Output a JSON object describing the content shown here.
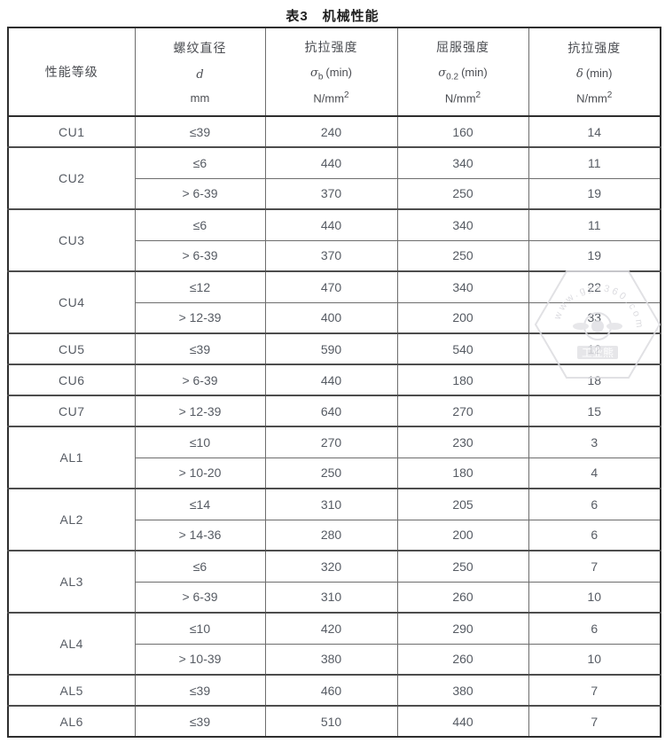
{
  "title": "表3　机械性能",
  "header": {
    "grade": "性能等级",
    "diameter": {
      "name": "螺纹直径",
      "symbol": "d",
      "unit": "mm"
    },
    "tensile": {
      "name": "抗拉强度",
      "symbol": "σ",
      "symbol_sub": "b",
      "min": "(min)",
      "unit": "N/mm",
      "unit_sup": "2"
    },
    "yield": {
      "name": "屈服强度",
      "symbol": "σ",
      "symbol_sub": "0.2",
      "min": "(min)",
      "unit": "N/mm",
      "unit_sup": "2"
    },
    "elong": {
      "name": "抗拉强度",
      "symbol": "δ",
      "min": "(min)",
      "unit": "N/mm",
      "unit_sup": "2"
    }
  },
  "groups": [
    {
      "grade": "CU1",
      "rows": [
        {
          "d": "≤39",
          "tensile": "240",
          "yield": "160",
          "elong": "14"
        }
      ]
    },
    {
      "grade": "CU2",
      "rows": [
        {
          "d": "≤6",
          "tensile": "440",
          "yield": "340",
          "elong": "11"
        },
        {
          "d": "> 6-39",
          "tensile": "370",
          "yield": "250",
          "elong": "19"
        }
      ]
    },
    {
      "grade": "CU3",
      "rows": [
        {
          "d": "≤6",
          "tensile": "440",
          "yield": "340",
          "elong": "11"
        },
        {
          "d": "> 6-39",
          "tensile": "370",
          "yield": "250",
          "elong": "19"
        }
      ]
    },
    {
      "grade": "CU4",
      "rows": [
        {
          "d": "≤12",
          "tensile": "470",
          "yield": "340",
          "elong": "22"
        },
        {
          "d": "> 12-39",
          "tensile": "400",
          "yield": "200",
          "elong": "33"
        }
      ]
    },
    {
      "grade": "CU5",
      "rows": [
        {
          "d": "≤39",
          "tensile": "590",
          "yield": "540",
          "elong": "12"
        }
      ]
    },
    {
      "grade": "CU6",
      "rows": [
        {
          "d": "> 6-39",
          "tensile": "440",
          "yield": "180",
          "elong": "18"
        }
      ]
    },
    {
      "grade": "CU7",
      "rows": [
        {
          "d": "> 12-39",
          "tensile": "640",
          "yield": "270",
          "elong": "15"
        }
      ]
    },
    {
      "grade": "AL1",
      "rows": [
        {
          "d": "≤10",
          "tensile": "270",
          "yield": "230",
          "elong": "3"
        },
        {
          "d": "> 10-20",
          "tensile": "250",
          "yield": "180",
          "elong": "4"
        }
      ]
    },
    {
      "grade": "AL2",
      "rows": [
        {
          "d": "≤14",
          "tensile": "310",
          "yield": "205",
          "elong": "6"
        },
        {
          "d": "> 14-36",
          "tensile": "280",
          "yield": "200",
          "elong": "6"
        }
      ]
    },
    {
      "grade": "AL3",
      "rows": [
        {
          "d": "≤6",
          "tensile": "320",
          "yield": "250",
          "elong": "7"
        },
        {
          "d": "> 6-39",
          "tensile": "310",
          "yield": "260",
          "elong": "10"
        }
      ]
    },
    {
      "grade": "AL4",
      "rows": [
        {
          "d": "≤10",
          "tensile": "420",
          "yield": "290",
          "elong": "6"
        },
        {
          "d": "> 10-39",
          "tensile": "380",
          "yield": "260",
          "elong": "10"
        }
      ]
    },
    {
      "grade": "AL5",
      "rows": [
        {
          "d": "≤39",
          "tensile": "460",
          "yield": "380",
          "elong": "7"
        }
      ]
    },
    {
      "grade": "AL6",
      "rows": [
        {
          "d": "≤39",
          "tensile": "510",
          "yield": "440",
          "elong": "7"
        }
      ]
    }
  ],
  "watermark": {
    "arc_text": "www.gyx360.com",
    "label": "工业熊"
  },
  "colors": {
    "outer_border": "#2e2e2e",
    "inner_border": "#6d6d6d",
    "group_border": "#4d4d4d",
    "text": "#565b63",
    "header_text": "#4b4d52",
    "watermark": "#dcdce0"
  }
}
